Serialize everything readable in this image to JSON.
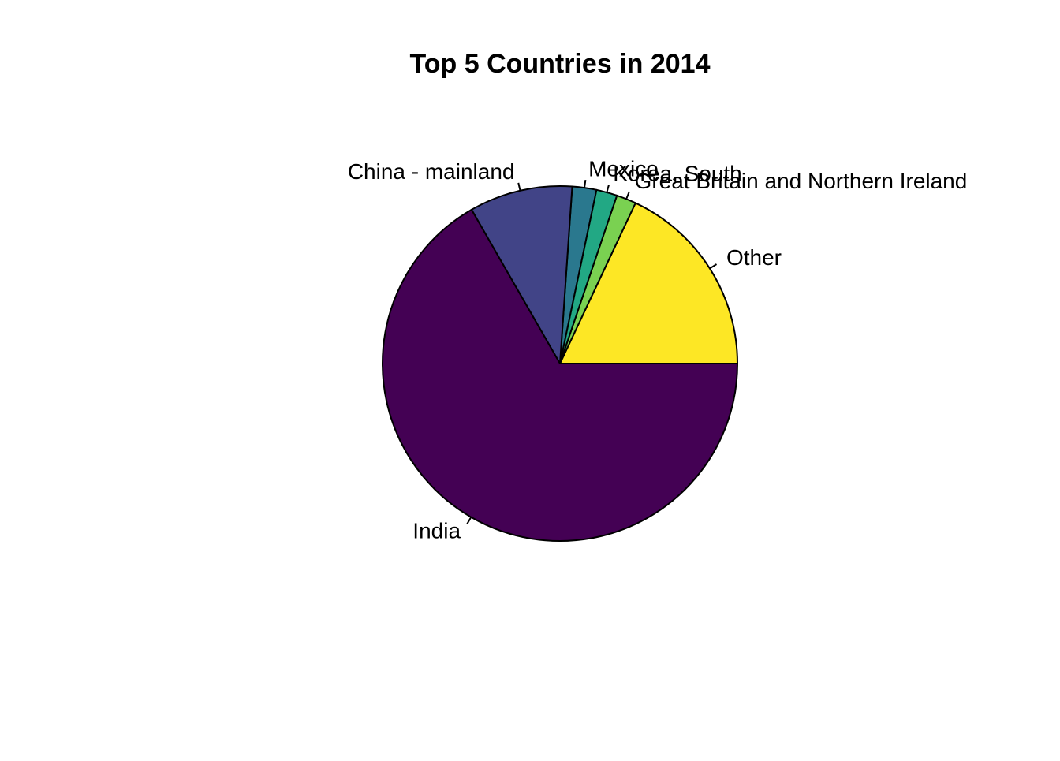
{
  "chart_data": {
    "type": "pie",
    "title": "Top 5 Countries in 2014",
    "clockwise": false,
    "start": "3 o'clock",
    "slices": [
      {
        "label": "Other",
        "value": 18.0,
        "color": "#FDE725"
      },
      {
        "label": "Great Britain and Northern Ireland",
        "value": 1.8,
        "color": "#7AD151"
      },
      {
        "label": "Korea, South",
        "value": 1.9,
        "color": "#22A884"
      },
      {
        "label": "Mexico",
        "value": 2.2,
        "color": "#2A788E"
      },
      {
        "label": "China - mainland",
        "value": 9.4,
        "color": "#414487"
      },
      {
        "label": "India",
        "value": 66.7,
        "color": "#440154"
      }
    ]
  }
}
